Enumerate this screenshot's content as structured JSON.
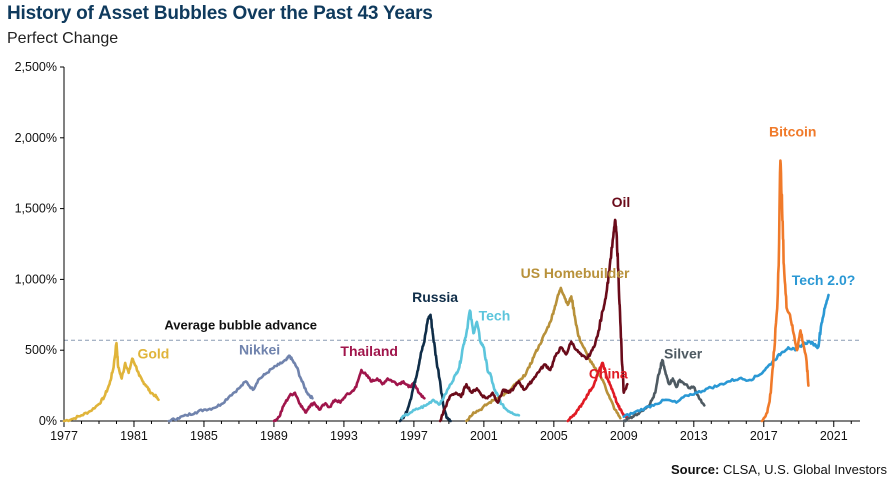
{
  "title": "History of Asset Bubbles Over the Past 43 Years",
  "subtitle": "Perfect Change",
  "source_label": "Source:",
  "source_text": "CLSA, U.S. Global Investors",
  "chart_data": {
    "type": "line",
    "title": "History of Asset Bubbles Over the Past 43 Years",
    "ylabel": "Perfect Change",
    "xlim": [
      1977,
      2022.5
    ],
    "ylim": [
      0,
      2500
    ],
    "x_ticks": [
      1977,
      1981,
      1985,
      1989,
      1993,
      1997,
      2001,
      2005,
      2009,
      2013,
      2017,
      2021
    ],
    "y_ticks": [
      0,
      500,
      1000,
      1500,
      2000,
      2500
    ],
    "y_tick_labels": [
      "0%",
      "500%",
      "1,000%",
      "1,500%",
      "2,000%",
      "2,500%"
    ],
    "average_line": {
      "label": "Average bubble advance",
      "value": 570
    },
    "series": [
      {
        "name": "Gold",
        "color": "#e0b43a",
        "label_anchor": [
          1981.2,
          440
        ],
        "points": [
          [
            1977.0,
            0
          ],
          [
            1977.5,
            15
          ],
          [
            1978.0,
            40
          ],
          [
            1978.5,
            70
          ],
          [
            1979.0,
            120
          ],
          [
            1979.3,
            170
          ],
          [
            1979.6,
            260
          ],
          [
            1979.8,
            360
          ],
          [
            1980.0,
            550
          ],
          [
            1980.1,
            380
          ],
          [
            1980.3,
            300
          ],
          [
            1980.5,
            410
          ],
          [
            1980.7,
            340
          ],
          [
            1980.9,
            440
          ],
          [
            1981.1,
            390
          ],
          [
            1981.3,
            320
          ],
          [
            1981.5,
            280
          ],
          [
            1981.7,
            250
          ],
          [
            1981.9,
            210
          ],
          [
            1982.2,
            180
          ],
          [
            1982.4,
            150
          ]
        ]
      },
      {
        "name": "Nikkei",
        "color": "#7083ad",
        "label_anchor": [
          1987.0,
          470
        ],
        "points": [
          [
            1983.0,
            0
          ],
          [
            1983.5,
            20
          ],
          [
            1984.0,
            40
          ],
          [
            1984.5,
            60
          ],
          [
            1985.0,
            80
          ],
          [
            1985.5,
            90
          ],
          [
            1986.0,
            120
          ],
          [
            1986.5,
            180
          ],
          [
            1987.0,
            230
          ],
          [
            1987.4,
            280
          ],
          [
            1987.8,
            220
          ],
          [
            1988.1,
            290
          ],
          [
            1988.5,
            330
          ],
          [
            1988.9,
            370
          ],
          [
            1989.3,
            400
          ],
          [
            1989.7,
            430
          ],
          [
            1989.9,
            460
          ],
          [
            1990.1,
            420
          ],
          [
            1990.3,
            380
          ],
          [
            1990.6,
            280
          ],
          [
            1990.9,
            200
          ],
          [
            1991.2,
            160
          ]
        ]
      },
      {
        "name": "Thailand",
        "color": "#a0154b",
        "label_anchor": [
          1992.8,
          460
        ],
        "points": [
          [
            1989.0,
            0
          ],
          [
            1989.3,
            30
          ],
          [
            1989.6,
            120
          ],
          [
            1989.9,
            180
          ],
          [
            1990.2,
            200
          ],
          [
            1990.5,
            120
          ],
          [
            1990.8,
            60
          ],
          [
            1991.0,
            100
          ],
          [
            1991.3,
            130
          ],
          [
            1991.6,
            80
          ],
          [
            1991.9,
            120
          ],
          [
            1992.2,
            100
          ],
          [
            1992.5,
            150
          ],
          [
            1992.8,
            130
          ],
          [
            1993.1,
            180
          ],
          [
            1993.4,
            200
          ],
          [
            1993.7,
            240
          ],
          [
            1994.0,
            360
          ],
          [
            1994.3,
            320
          ],
          [
            1994.6,
            280
          ],
          [
            1994.9,
            300
          ],
          [
            1995.2,
            260
          ],
          [
            1995.5,
            300
          ],
          [
            1995.8,
            280
          ],
          [
            1996.1,
            260
          ],
          [
            1996.4,
            280
          ],
          [
            1996.7,
            240
          ],
          [
            1997.0,
            260
          ],
          [
            1997.3,
            200
          ],
          [
            1997.6,
            160
          ]
        ]
      },
      {
        "name": "Russia",
        "color": "#0f2d48",
        "label_anchor": [
          1996.9,
          840
        ],
        "points": [
          [
            1996.2,
            0
          ],
          [
            1996.5,
            40
          ],
          [
            1996.8,
            150
          ],
          [
            1997.0,
            250
          ],
          [
            1997.2,
            350
          ],
          [
            1997.4,
            480
          ],
          [
            1997.6,
            560
          ],
          [
            1997.8,
            720
          ],
          [
            1997.95,
            750
          ],
          [
            1998.1,
            600
          ],
          [
            1998.3,
            420
          ],
          [
            1998.5,
            280
          ],
          [
            1998.7,
            100
          ],
          [
            1998.9,
            20
          ],
          [
            1999.1,
            0
          ]
        ]
      },
      {
        "name": "Tech",
        "color": "#5cc5dc",
        "label_anchor": [
          2000.7,
          710
        ],
        "points": [
          [
            1996.3,
            20
          ],
          [
            1996.8,
            60
          ],
          [
            1997.3,
            90
          ],
          [
            1997.7,
            110
          ],
          [
            1998.1,
            150
          ],
          [
            1998.5,
            120
          ],
          [
            1998.8,
            190
          ],
          [
            1999.1,
            260
          ],
          [
            1999.4,
            330
          ],
          [
            1999.6,
            380
          ],
          [
            1999.8,
            520
          ],
          [
            2000.0,
            620
          ],
          [
            2000.2,
            780
          ],
          [
            2000.4,
            620
          ],
          [
            2000.6,
            700
          ],
          [
            2000.8,
            560
          ],
          [
            2001.0,
            520
          ],
          [
            2001.2,
            360
          ],
          [
            2001.4,
            320
          ],
          [
            2001.6,
            220
          ],
          [
            2001.8,
            180
          ],
          [
            2002.0,
            120
          ],
          [
            2002.3,
            80
          ],
          [
            2002.6,
            60
          ],
          [
            2003.0,
            40
          ]
        ]
      },
      {
        "name": "US Homebuilder",
        "color": "#b8913a",
        "label_anchor": [
          2003.1,
          1010
        ],
        "points": [
          [
            2000.0,
            0
          ],
          [
            2000.4,
            60
          ],
          [
            2000.8,
            80
          ],
          [
            2001.2,
            120
          ],
          [
            2001.6,
            150
          ],
          [
            2002.0,
            180
          ],
          [
            2002.4,
            200
          ],
          [
            2002.8,
            260
          ],
          [
            2003.2,
            300
          ],
          [
            2003.6,
            380
          ],
          [
            2003.9,
            470
          ],
          [
            2004.2,
            540
          ],
          [
            2004.5,
            620
          ],
          [
            2004.8,
            700
          ],
          [
            2005.0,
            780
          ],
          [
            2005.2,
            870
          ],
          [
            2005.4,
            940
          ],
          [
            2005.6,
            880
          ],
          [
            2005.8,
            820
          ],
          [
            2006.0,
            880
          ],
          [
            2006.2,
            740
          ],
          [
            2006.4,
            600
          ],
          [
            2006.7,
            520
          ],
          [
            2007.0,
            440
          ],
          [
            2007.3,
            380
          ],
          [
            2007.6,
            330
          ],
          [
            2007.9,
            260
          ],
          [
            2008.2,
            160
          ],
          [
            2008.5,
            80
          ],
          [
            2008.8,
            20
          ]
        ]
      },
      {
        "name": "Oil",
        "color": "#6a0b1a",
        "label_anchor": [
          2008.3,
          1510
        ],
        "points": [
          [
            1998.5,
            0
          ],
          [
            1998.8,
            100
          ],
          [
            1999.1,
            180
          ],
          [
            1999.4,
            200
          ],
          [
            1999.7,
            170
          ],
          [
            2000.0,
            260
          ],
          [
            2000.3,
            200
          ],
          [
            2000.6,
            230
          ],
          [
            2000.9,
            180
          ],
          [
            2001.2,
            160
          ],
          [
            2001.5,
            200
          ],
          [
            2001.8,
            130
          ],
          [
            2002.1,
            220
          ],
          [
            2002.4,
            200
          ],
          [
            2002.7,
            230
          ],
          [
            2003.0,
            280
          ],
          [
            2003.3,
            220
          ],
          [
            2003.6,
            260
          ],
          [
            2003.9,
            310
          ],
          [
            2004.2,
            360
          ],
          [
            2004.5,
            400
          ],
          [
            2004.8,
            360
          ],
          [
            2005.1,
            460
          ],
          [
            2005.4,
            520
          ],
          [
            2005.7,
            470
          ],
          [
            2006.0,
            560
          ],
          [
            2006.3,
            500
          ],
          [
            2006.6,
            460
          ],
          [
            2006.9,
            440
          ],
          [
            2007.2,
            500
          ],
          [
            2007.5,
            600
          ],
          [
            2007.8,
            780
          ],
          [
            2008.0,
            900
          ],
          [
            2008.2,
            1100
          ],
          [
            2008.4,
            1300
          ],
          [
            2008.5,
            1420
          ],
          [
            2008.6,
            1300
          ],
          [
            2008.7,
            1000
          ],
          [
            2008.8,
            700
          ],
          [
            2008.9,
            400
          ],
          [
            2009.0,
            200
          ],
          [
            2009.2,
            260
          ]
        ]
      },
      {
        "name": "China",
        "color": "#e01b24",
        "label_anchor": [
          2007.0,
          300
        ],
        "points": [
          [
            2005.8,
            0
          ],
          [
            2006.1,
            40
          ],
          [
            2006.4,
            80
          ],
          [
            2006.7,
            140
          ],
          [
            2007.0,
            200
          ],
          [
            2007.3,
            260
          ],
          [
            2007.6,
            360
          ],
          [
            2007.8,
            410
          ],
          [
            2008.0,
            320
          ],
          [
            2008.2,
            260
          ],
          [
            2008.4,
            200
          ],
          [
            2008.6,
            130
          ],
          [
            2008.8,
            80
          ],
          [
            2009.0,
            40
          ],
          [
            2009.3,
            20
          ]
        ]
      },
      {
        "name": "Silver",
        "color": "#4e5a62",
        "label_anchor": [
          2011.3,
          440
        ],
        "points": [
          [
            2009.0,
            0
          ],
          [
            2009.3,
            20
          ],
          [
            2009.6,
            40
          ],
          [
            2009.9,
            60
          ],
          [
            2010.2,
            90
          ],
          [
            2010.5,
            120
          ],
          [
            2010.8,
            200
          ],
          [
            2011.0,
            330
          ],
          [
            2011.2,
            430
          ],
          [
            2011.4,
            330
          ],
          [
            2011.6,
            260
          ],
          [
            2011.8,
            300
          ],
          [
            2012.0,
            240
          ],
          [
            2012.2,
            290
          ],
          [
            2012.5,
            260
          ],
          [
            2012.8,
            230
          ],
          [
            2013.0,
            240
          ],
          [
            2013.3,
            160
          ],
          [
            2013.6,
            110
          ]
        ]
      },
      {
        "name": "Tech 2.0?",
        "color": "#2a98d4",
        "label_anchor": [
          2018.6,
          960
        ],
        "points": [
          [
            2009.0,
            30
          ],
          [
            2009.6,
            60
          ],
          [
            2010.2,
            90
          ],
          [
            2010.8,
            120
          ],
          [
            2011.4,
            150
          ],
          [
            2012.0,
            130
          ],
          [
            2012.6,
            180
          ],
          [
            2013.2,
            200
          ],
          [
            2013.8,
            230
          ],
          [
            2014.4,
            250
          ],
          [
            2015.0,
            280
          ],
          [
            2015.6,
            300
          ],
          [
            2016.2,
            290
          ],
          [
            2016.8,
            330
          ],
          [
            2017.2,
            380
          ],
          [
            2017.6,
            430
          ],
          [
            2018.0,
            480
          ],
          [
            2018.4,
            520
          ],
          [
            2018.8,
            500
          ],
          [
            2019.2,
            540
          ],
          [
            2019.6,
            560
          ],
          [
            2019.9,
            540
          ],
          [
            2020.1,
            520
          ],
          [
            2020.3,
            690
          ],
          [
            2020.5,
            800
          ],
          [
            2020.7,
            890
          ]
        ]
      },
      {
        "name": "Bitcoin",
        "color": "#f07a2a",
        "label_anchor": [
          2017.3,
          2010
        ],
        "points": [
          [
            2016.9,
            0
          ],
          [
            2017.2,
            60
          ],
          [
            2017.4,
            200
          ],
          [
            2017.6,
            500
          ],
          [
            2017.8,
            900
          ],
          [
            2017.95,
            1840
          ],
          [
            2018.05,
            1500
          ],
          [
            2018.15,
            1100
          ],
          [
            2018.3,
            800
          ],
          [
            2018.5,
            750
          ],
          [
            2018.7,
            620
          ],
          [
            2018.9,
            500
          ],
          [
            2019.1,
            640
          ],
          [
            2019.3,
            520
          ],
          [
            2019.45,
            420
          ],
          [
            2019.55,
            250
          ]
        ]
      }
    ]
  }
}
